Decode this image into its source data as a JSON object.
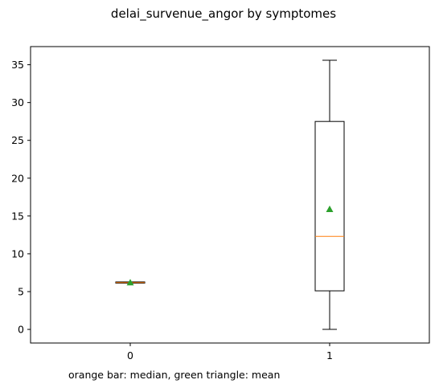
{
  "chart_data": {
    "type": "box",
    "title": "delai_survenue_angor by symptomes",
    "xlabel": "",
    "ylabel": "",
    "footnote": "orange bar: median, green triangle: mean",
    "categories": [
      "0",
      "1"
    ],
    "boxes": [
      {
        "category": "0",
        "whisker_low": 6.2,
        "q1": 6.2,
        "median": 6.2,
        "q3": 6.2,
        "whisker_high": 6.2,
        "mean": 6.2
      },
      {
        "category": "1",
        "whisker_low": 0.0,
        "q1": 5.1,
        "median": 12.3,
        "q3": 27.5,
        "whisker_high": 35.6,
        "mean": 15.9
      }
    ],
    "yticks": [
      0,
      5,
      10,
      15,
      20,
      25,
      30,
      35
    ],
    "ylim": [
      -1.8,
      37.4
    ],
    "grid": false,
    "colors": {
      "box": "#000000",
      "median": "#ff7f0e",
      "mean": "#2ca02c"
    }
  }
}
